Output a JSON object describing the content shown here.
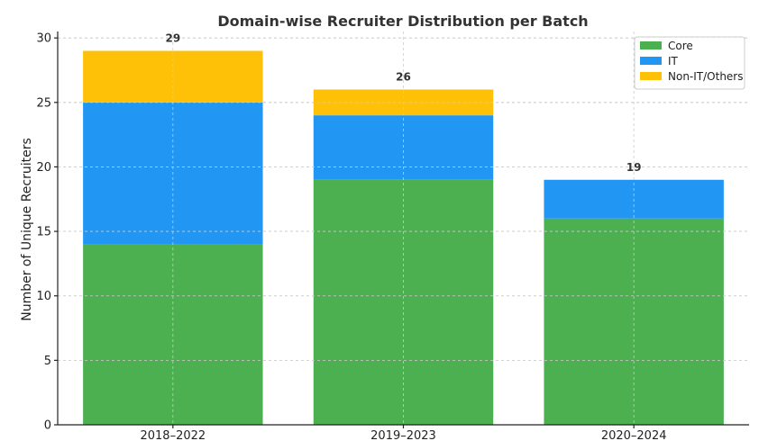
{
  "chart_data": {
    "type": "bar",
    "stacked": true,
    "title": "Domain-wise Recruiter Distribution per Batch",
    "xlabel": "",
    "ylabel": "Number of Unique Recruiters",
    "categories": [
      "2018–2022",
      "2019–2023",
      "2020–2024"
    ],
    "series": [
      {
        "name": "Core",
        "color": "#4caf50",
        "values": [
          14,
          19,
          16
        ]
      },
      {
        "name": "IT",
        "color": "#2196f3",
        "values": [
          11,
          5,
          3
        ]
      },
      {
        "name": "Non-IT/Others",
        "color": "#ffc107",
        "values": [
          4,
          2,
          0
        ]
      }
    ],
    "totals": [
      29,
      26,
      19
    ],
    "yticks": [
      0,
      5,
      10,
      15,
      20,
      25,
      30
    ],
    "ylim": [
      0,
      30.5
    ],
    "grid": true,
    "legend_position": "top-right"
  }
}
